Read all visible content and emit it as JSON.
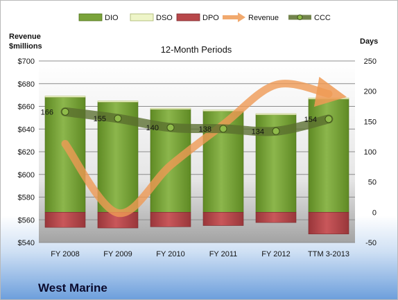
{
  "company": "West Marine",
  "chart_data": {
    "type": "bar+line",
    "title": "12-Month Periods",
    "left_axis_title": [
      "Revenue",
      "$millions"
    ],
    "right_axis_title": "Days",
    "categories": [
      "FY 2008",
      "FY 2009",
      "FY 2010",
      "FY 2011",
      "FY 2012",
      "TTM 3-2013"
    ],
    "left_ticks": [
      "$540",
      "$560",
      "$580",
      "$600",
      "$620",
      "$640",
      "$660",
      "$680",
      "$700"
    ],
    "right_ticks": [
      "-50",
      "0",
      "50",
      "100",
      "150",
      "200",
      "250"
    ],
    "ylim_left": [
      540,
      700
    ],
    "ylim_right": [
      -50,
      250
    ],
    "legend_position": "top",
    "legend": [
      "DIO",
      "DSO",
      "DPO",
      "Revenue",
      "CCC"
    ],
    "colors": {
      "DIO": "#7aa33a",
      "DSO": "#eef5c8",
      "DPO": "#b8474a",
      "Revenue": "#ef9a55",
      "CCC": "#5a6e2e"
    },
    "series": [
      {
        "name": "DIO",
        "axis": "right",
        "values": [
          190,
          182,
          170,
          167,
          161,
          187
        ]
      },
      {
        "name": "DSO",
        "axis": "right",
        "values": [
          2,
          2,
          2,
          2,
          2,
          2
        ]
      },
      {
        "name": "DPO",
        "axis": "right",
        "values": [
          -25,
          -26,
          -24,
          -22,
          -17,
          -36
        ]
      },
      {
        "name": "Revenue",
        "axis": "left",
        "values": [
          627,
          566,
          608,
          644,
          679,
          671
        ]
      },
      {
        "name": "CCC",
        "axis": "right",
        "values": [
          166,
          155,
          140,
          138,
          134,
          154
        ]
      }
    ],
    "ccc_labels": [
      "166",
      "155",
      "140",
      "138",
      "134",
      "154"
    ]
  }
}
